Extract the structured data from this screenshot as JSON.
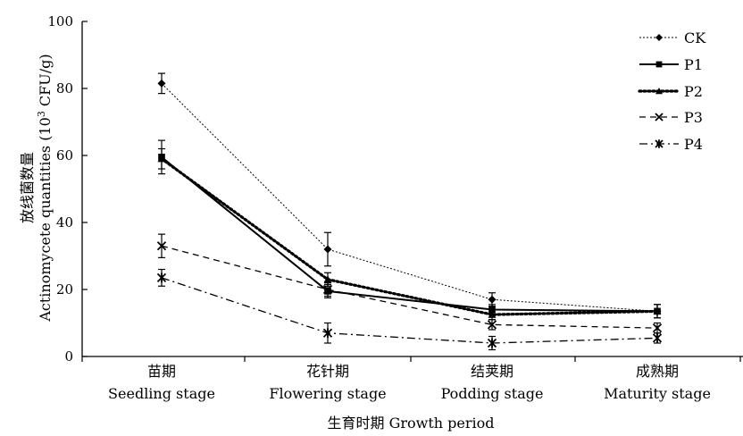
{
  "chart_data": {
    "type": "line",
    "categories": [
      {
        "cn": "苗期",
        "en": "Seedling stage"
      },
      {
        "cn": "花针期",
        "en": "Flowering stage"
      },
      {
        "cn": "结荚期",
        "en": "Podding stage"
      },
      {
        "cn": "成熟期",
        "en": "Maturity stage"
      }
    ],
    "xlabel": "生育时期 Growth period",
    "ylabel": {
      "cn": "放线菌数量",
      "en_pre": "Actinomycete quantities (10",
      "en_sup": "3",
      "en_post": " CFU/g)"
    },
    "ylim": [
      0,
      100
    ],
    "yticks": [
      0,
      20,
      40,
      60,
      80,
      100
    ],
    "legend_position": "top-right",
    "series": [
      {
        "name": "CK",
        "values": [
          81.5,
          32,
          17,
          13.5
        ],
        "errors": [
          3,
          5,
          2,
          2
        ],
        "marker": "diamond",
        "line": "dotted-fine"
      },
      {
        "name": "P1",
        "values": [
          59.5,
          19.5,
          14,
          13.5
        ],
        "errors": [
          5,
          2,
          1.5,
          2
        ],
        "marker": "square",
        "line": "solid"
      },
      {
        "name": "P2",
        "values": [
          59,
          23,
          12.5,
          13.5
        ],
        "errors": [
          3,
          2,
          1.5,
          2
        ],
        "marker": "triangle",
        "line": "dotted-bold"
      },
      {
        "name": "P3",
        "values": [
          33,
          20,
          9.5,
          8.5
        ],
        "errors": [
          3.5,
          2,
          1.5,
          1.5
        ],
        "marker": "x",
        "line": "dashed"
      },
      {
        "name": "P4",
        "values": [
          23.5,
          7,
          4,
          5.5
        ],
        "errors": [
          2.5,
          3,
          2,
          1.5
        ],
        "marker": "star",
        "line": "dash-dot"
      }
    ]
  }
}
